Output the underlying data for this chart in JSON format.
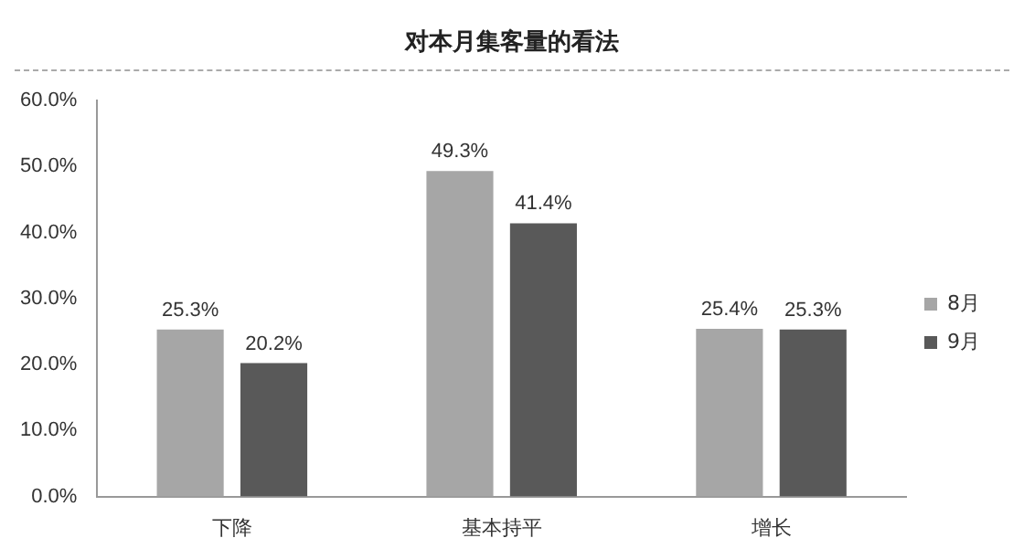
{
  "chart_data": {
    "type": "bar",
    "title": "对本月集客量的看法",
    "categories": [
      "下降",
      "基本持平",
      "增长"
    ],
    "series": [
      {
        "name": "8月",
        "color": "#a6a6a6",
        "values": [
          25.3,
          49.3,
          25.4
        ],
        "value_labels": [
          "25.3%",
          "49.3%",
          "25.4%"
        ]
      },
      {
        "name": "9月",
        "color": "#595959",
        "values": [
          20.2,
          41.4,
          25.3
        ],
        "value_labels": [
          "20.2%",
          "41.4%",
          "25.3%"
        ]
      }
    ],
    "ylim": [
      0,
      60
    ],
    "yticks": [
      {
        "value": 0,
        "label": "0.0%"
      },
      {
        "value": 10,
        "label": "10.0%"
      },
      {
        "value": 20,
        "label": "20.0%"
      },
      {
        "value": 30,
        "label": "30.0%"
      },
      {
        "value": 40,
        "label": "40.0%"
      },
      {
        "value": 50,
        "label": "50.0%"
      },
      {
        "value": 60,
        "label": "60.0%"
      }
    ],
    "grid": false,
    "legend": "right"
  }
}
